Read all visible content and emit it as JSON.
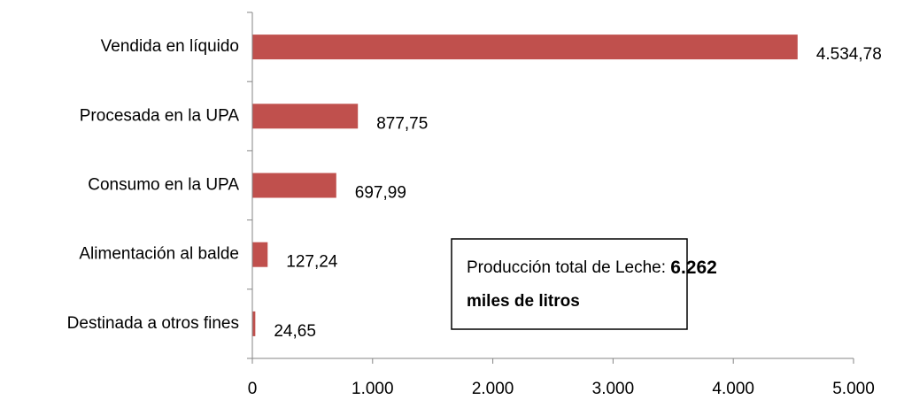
{
  "chart_data": {
    "type": "hbar",
    "categories": [
      "Vendida en líquido",
      "Procesada en la UPA",
      "Consumo en la UPA",
      "Alimentación al balde",
      "Destinada a otros fines"
    ],
    "values": [
      4534.78,
      877.75,
      697.99,
      127.24,
      24.65
    ],
    "value_labels": [
      "4.534,78",
      "877,75",
      "697,99",
      "127,24",
      "24,65"
    ],
    "color": "#c0504d",
    "xlim": [
      0,
      5000
    ],
    "xticks": [
      0,
      {
        "value": 1000,
        "label": "1.000"
      },
      {
        "value": 2000,
        "label": "2.000"
      },
      {
        "value": 3000,
        "label": "3.000"
      },
      {
        "value": 4000,
        "label": "4.000"
      },
      {
        "value": 5000,
        "label": "5.000"
      }
    ],
    "annotation": {
      "text": "Producción total de Leche:",
      "emphasis_start": "6.262",
      "emphasis_end": "miles de litros"
    }
  }
}
